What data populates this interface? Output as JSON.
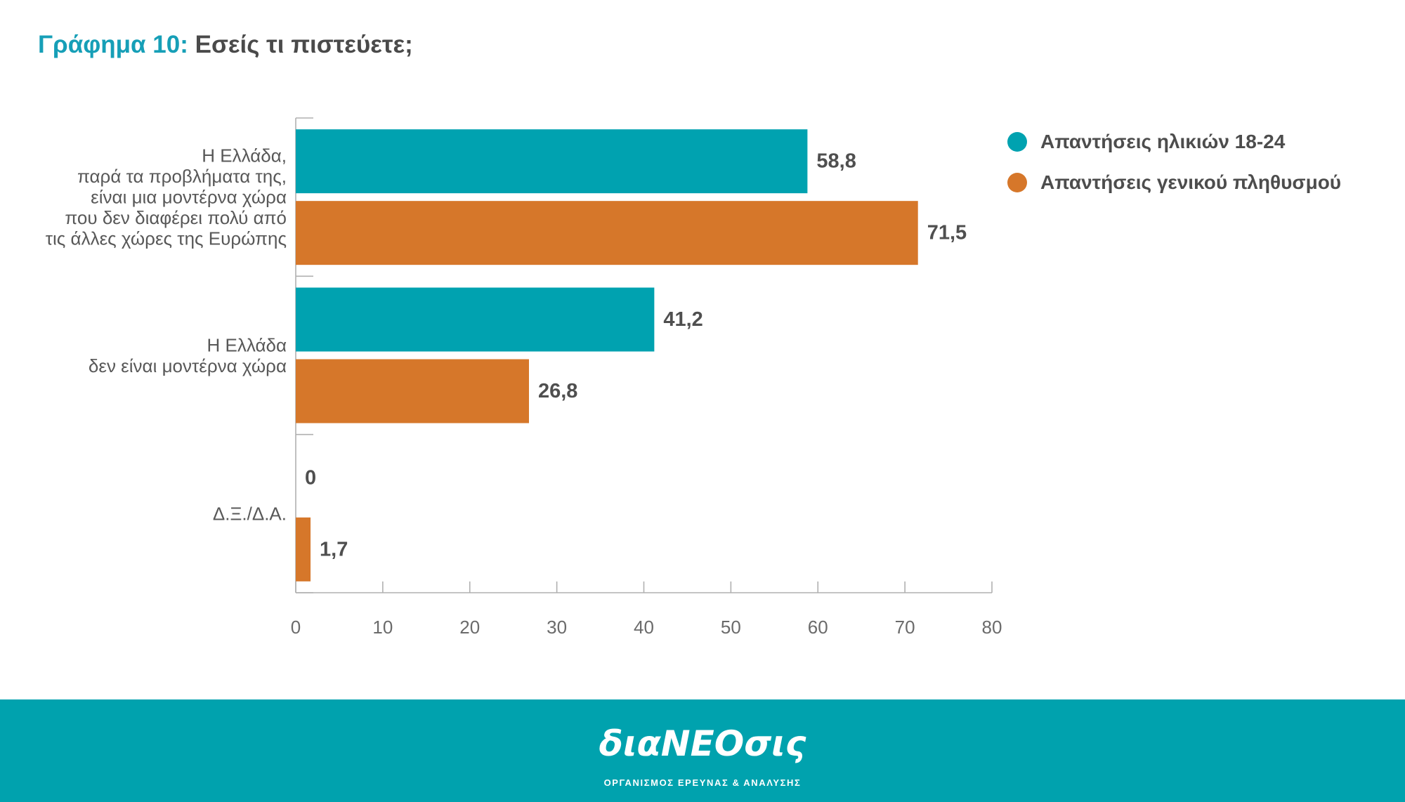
{
  "colors": {
    "accent": "#169fb7",
    "title_text": "#4a4a4a",
    "axis": "#b0b0b0",
    "footer_background": "#00a2ae"
  },
  "chart_data": {
    "type": "bar",
    "orientation": "horizontal",
    "title": {
      "label": "Γράφημα 10:",
      "question": "Εσείς τι πιστεύετε;"
    },
    "categories": [
      [
        "Η Ελλάδα,",
        "παρά τα προβλήματα της,",
        "είναι μια μοντέρνα χώρα",
        "που δεν διαφέρει πολύ από",
        "τις άλλες χώρες της Ευρώπης"
      ],
      [
        "Η Ελλάδα",
        "δεν είναι μοντέρνα χώρα"
      ],
      [
        "Δ.Ξ./Δ.Α."
      ]
    ],
    "series": [
      {
        "name": "Απαντήσεις ηλικιών 18-24",
        "values": [
          58.8,
          41.2,
          0
        ],
        "color": "#00a2b0"
      },
      {
        "name": "Απαντήσεις γενικού πληθυσμού",
        "values": [
          71.5,
          26.8,
          1.7
        ],
        "color": "#d6772a"
      }
    ],
    "xlim": [
      0,
      80
    ],
    "xticks": [
      0,
      10,
      20,
      30,
      40,
      50,
      60,
      70,
      80
    ],
    "grid": false,
    "data_labels": true,
    "legend_position": "top-right"
  },
  "footer": {
    "logo": "διαNEOσις",
    "tagline": "ΟΡΓΑΝΙΣΜΟΣ ΕΡΕΥΝΑΣ & ΑΝΑΛΥΣΗΣ"
  }
}
